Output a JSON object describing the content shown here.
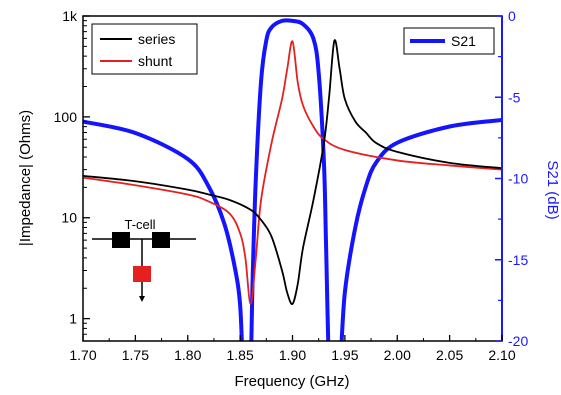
{
  "chart_data": {
    "type": "line",
    "xlabel": "Frequency (GHz)",
    "ylabel_left": "|Impedance| (Ohms)",
    "ylabel_right": "S21 (dB)",
    "xlim": [
      1.7,
      2.1
    ],
    "ylim_left": [
      0.6,
      1000
    ],
    "ylim_right": [
      -20,
      0
    ],
    "y_left_scale": "log",
    "x_ticks": [
      "1.70",
      "1.75",
      "1.80",
      "1.85",
      "1.90",
      "1.95",
      "2.00",
      "2.05",
      "2.10"
    ],
    "y_left_ticks": [
      "1",
      "10",
      "100",
      "1k"
    ],
    "y_right_ticks": [
      "0",
      "-5",
      "-10",
      "-15",
      "-20"
    ],
    "series": [
      {
        "name": "series",
        "axis": "left",
        "color": "#000000",
        "x": [
          1.7,
          1.75,
          1.8,
          1.82,
          1.84,
          1.86,
          1.87,
          1.88,
          1.89,
          1.895,
          1.9,
          1.905,
          1.91,
          1.92,
          1.93,
          1.935,
          1.94,
          1.945,
          1.95,
          1.96,
          1.97,
          1.98,
          2.0,
          2.05,
          2.1
        ],
        "values": [
          26,
          23,
          19,
          17,
          15,
          12,
          9.5,
          6.5,
          3,
          1.8,
          1.4,
          2.2,
          5,
          15,
          55,
          160,
          570,
          300,
          150,
          90,
          70,
          55,
          45,
          35,
          31
        ]
      },
      {
        "name": "shunt",
        "axis": "left",
        "color": "#e52020",
        "x": [
          1.7,
          1.75,
          1.8,
          1.82,
          1.84,
          1.85,
          1.855,
          1.86,
          1.865,
          1.87,
          1.88,
          1.89,
          1.895,
          1.9,
          1.905,
          1.91,
          1.92,
          1.93,
          1.95,
          2.0,
          2.05,
          2.1
        ],
        "values": [
          25,
          21,
          17,
          14.5,
          11,
          7,
          4,
          1.4,
          4,
          15,
          55,
          150,
          300,
          560,
          220,
          130,
          80,
          60,
          47,
          37,
          33,
          30
        ]
      },
      {
        "name": "S21",
        "axis": "right",
        "color": "#1414ff",
        "x": [
          1.7,
          1.75,
          1.8,
          1.82,
          1.835,
          1.845,
          1.85,
          1.853,
          1.856,
          1.858,
          1.86,
          1.862,
          1.865,
          1.87,
          1.875,
          1.88,
          1.89,
          1.9,
          1.91,
          1.92,
          1.925,
          1.93,
          1.932,
          1.935,
          1.938,
          1.94,
          1.945,
          1.95,
          1.96,
          1.97,
          1.98,
          2.0,
          2.05,
          2.1
        ],
        "values": [
          -6.5,
          -7.2,
          -8.8,
          -10.5,
          -12.8,
          -15.5,
          -17.8,
          -20,
          -20,
          -20,
          -20,
          -16,
          -10,
          -4,
          -1.5,
          -0.7,
          -0.3,
          -0.3,
          -0.5,
          -1.4,
          -3.5,
          -9,
          -14,
          -20,
          -20,
          -20,
          -20,
          -17,
          -13,
          -10.5,
          -9,
          -7.8,
          -6.8,
          -6.4
        ]
      }
    ],
    "legends": [
      {
        "entries": [
          "series",
          "shunt"
        ],
        "placement": "top-left"
      },
      {
        "entries": [
          "S21"
        ],
        "placement": "top-right"
      }
    ],
    "inset_label": "T-cell"
  }
}
